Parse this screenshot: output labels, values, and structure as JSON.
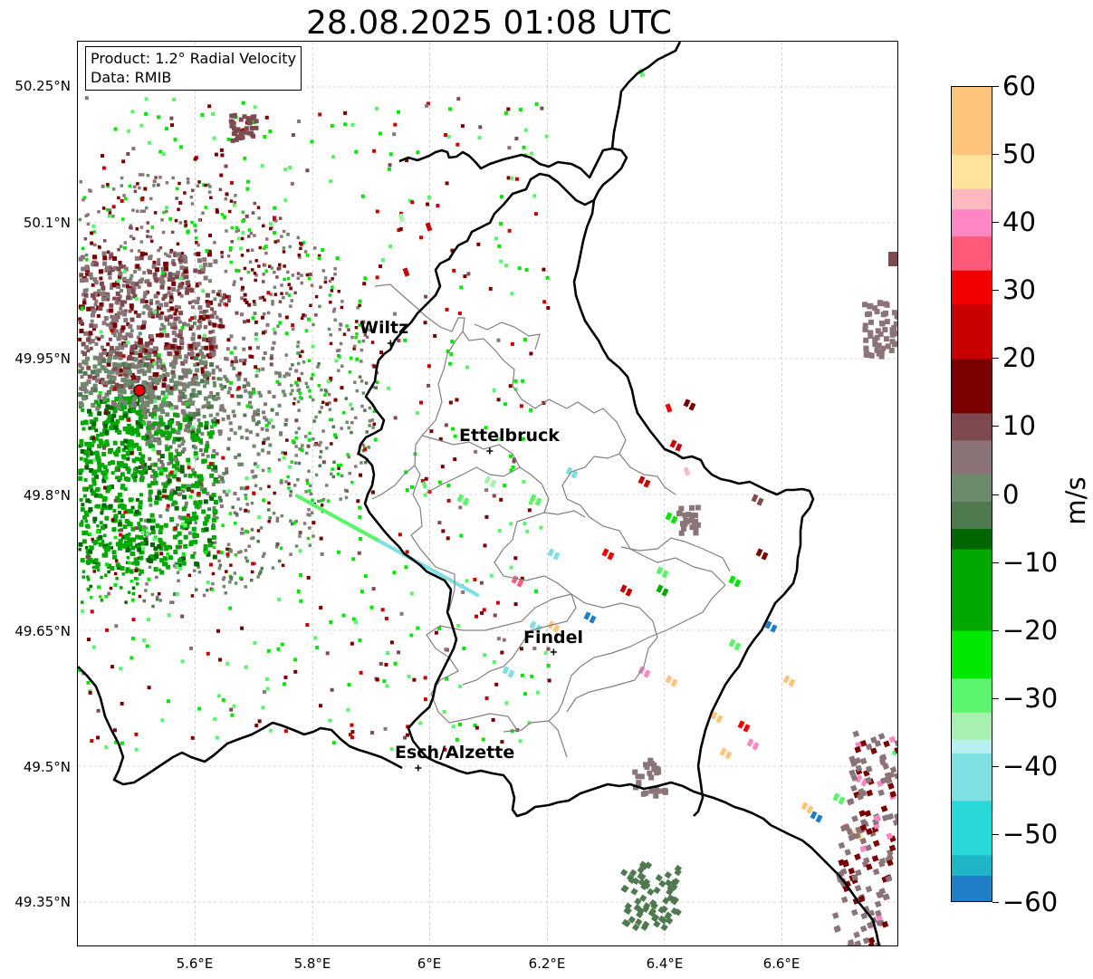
{
  "title": "28.08.2025 01:08 UTC",
  "info": {
    "product": "Product: 1.2° Radial Velocity",
    "data_source": "Data: RMIB"
  },
  "axes": {
    "lat_labels": [
      "50.25°N",
      "50.1°N",
      "49.95°N",
      "49.8°N",
      "49.65°N",
      "49.5°N",
      "49.35°N"
    ],
    "lon_labels": [
      "5.6°E",
      "5.8°E",
      "6°E",
      "6.2°E",
      "6.4°E",
      "6.6°E"
    ],
    "lat_range": [
      49.3,
      50.3
    ],
    "lon_range": [
      5.4,
      6.8
    ],
    "grid": true
  },
  "cities": [
    {
      "name": "Wiltz",
      "lat": 49.967,
      "lon": 5.933
    },
    {
      "name": "Ettelbruck",
      "lat": 49.848,
      "lon": 6.102
    },
    {
      "name": "Findel",
      "lat": 49.626,
      "lon": 6.211
    },
    {
      "name": "Esch/Alzette",
      "lat": 49.498,
      "lon": 5.98
    }
  ],
  "radar_site": {
    "lat": 49.915,
    "lon": 5.505,
    "color": "#ee0000"
  },
  "colorbar": {
    "label": "m/s",
    "min": -60,
    "max": 60,
    "ticks": [
      "60",
      "50",
      "40",
      "30",
      "20",
      "10",
      "0",
      "−10",
      "−20",
      "−30",
      "−40",
      "−50",
      "−60"
    ],
    "tick_values": [
      60,
      50,
      40,
      30,
      20,
      10,
      0,
      -10,
      -20,
      -30,
      -40,
      -50,
      -60
    ],
    "stops": [
      {
        "value": 60,
        "color": "#ff9a4f"
      },
      {
        "value": 50,
        "color": "#ffc47a"
      },
      {
        "value": 45,
        "color": "#ffe39a"
      },
      {
        "value": 42,
        "color": "#ffb8c0"
      },
      {
        "value": 38,
        "color": "#ff86c4"
      },
      {
        "value": 33,
        "color": "#ff5a78"
      },
      {
        "value": 28,
        "color": "#f40000"
      },
      {
        "value": 20,
        "color": "#c80000"
      },
      {
        "value": 12,
        "color": "#7a0000"
      },
      {
        "value": 8,
        "color": "#7e4a50"
      },
      {
        "value": 3,
        "color": "#8a7478"
      },
      {
        "value": -1,
        "color": "#6e8a6c"
      },
      {
        "value": -5,
        "color": "#4f7a4f"
      },
      {
        "value": -8,
        "color": "#006600"
      },
      {
        "value": -20,
        "color": "#00a800"
      },
      {
        "value": -27,
        "color": "#00e800"
      },
      {
        "value": -32,
        "color": "#5af56a"
      },
      {
        "value": -36,
        "color": "#a8f0b0"
      },
      {
        "value": -38,
        "color": "#b8eff0"
      },
      {
        "value": -45,
        "color": "#7fe0e3"
      },
      {
        "value": -53,
        "color": "#2ad8d8"
      },
      {
        "value": -56,
        "color": "#1fb4c8"
      },
      {
        "value": -60,
        "color": "#1f7ec8"
      }
    ]
  }
}
